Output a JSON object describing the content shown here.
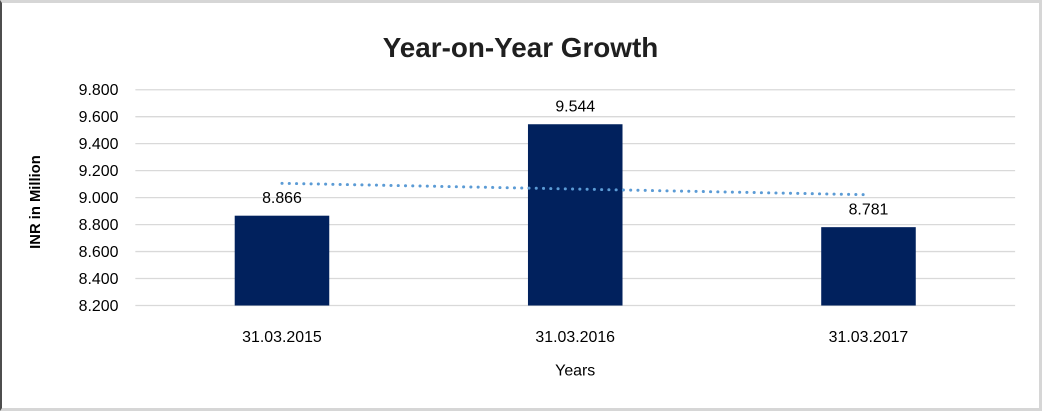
{
  "chart_data": {
    "type": "bar",
    "title": "Year-on-Year Growth",
    "xlabel": "Years",
    "ylabel": "INR in Million",
    "categories": [
      "31.03.2015",
      "31.03.2016",
      "31.03.2017"
    ],
    "values": [
      8.866,
      9.544,
      8.781
    ],
    "data_labels": [
      "8.866",
      "9.544",
      "8.781"
    ],
    "ylim": [
      8.2,
      9.8
    ],
    "ytick_step": 0.2,
    "ytick_labels": [
      "8.200",
      "8.400",
      "8.600",
      "8.800",
      "9.000",
      "9.200",
      "9.400",
      "9.600",
      "9.800"
    ],
    "grid": true,
    "legend": "none",
    "bar_color": "#01215D",
    "gridline_color": "#D9D9D9",
    "text_color": "#000000",
    "title_color": "#1f1f1f",
    "trendline": {
      "type": "linear",
      "style": "dotted",
      "color": "#5B9BD5"
    }
  }
}
